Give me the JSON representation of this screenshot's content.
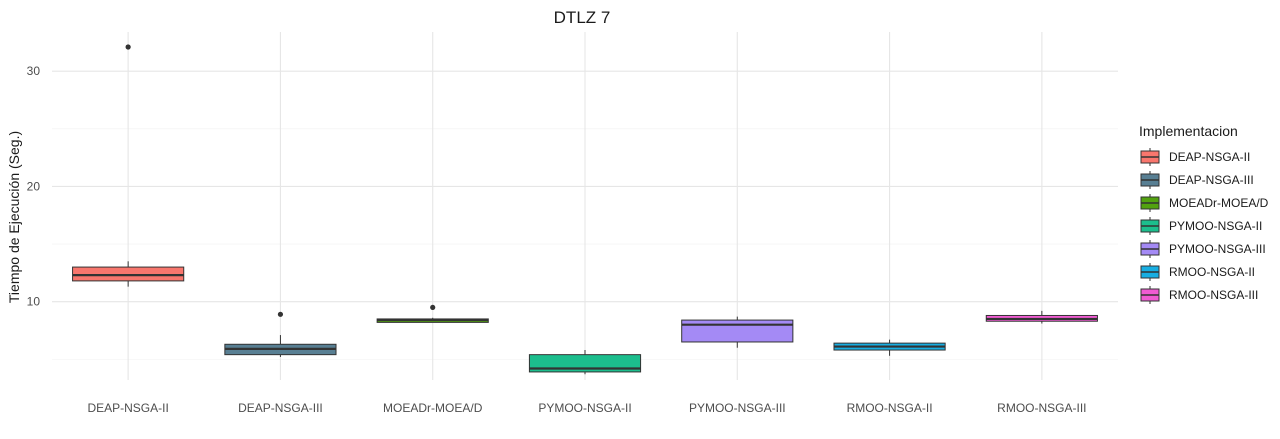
{
  "chart_data": {
    "type": "boxplot",
    "title": "DTLZ 7",
    "xlabel": "",
    "ylabel": "Tiempo de Ejecución (Seg.)",
    "ylim": [
      3.2,
      33.4
    ],
    "yticks": [
      10,
      20,
      30
    ],
    "grid": true,
    "legend_title": "Implementacion",
    "legend_position": "right",
    "categories": [
      "DEAP-NSGA-II",
      "DEAP-NSGA-III",
      "MOEADr-MOEA/D",
      "PYMOO-NSGA-II",
      "PYMOO-NSGA-III",
      "RMOO-NSGA-II",
      "RMOO-NSGA-III"
    ],
    "series": [
      {
        "name": "DEAP-NSGA-II",
        "color": "#F8766D",
        "min": 11.3,
        "q1": 11.8,
        "median": 12.3,
        "q3": 13.0,
        "max": 13.5,
        "outliers": [
          32.1
        ]
      },
      {
        "name": "DEAP-NSGA-III",
        "color": "#587F93",
        "min": 5.2,
        "q1": 5.4,
        "median": 5.9,
        "q3": 6.3,
        "max": 7.1,
        "outliers": [
          8.9
        ]
      },
      {
        "name": "MOEADr-MOEA/D",
        "color": "#52A20F",
        "min": 8.2,
        "q1": 8.2,
        "median": 8.4,
        "q3": 8.5,
        "max": 8.6,
        "outliers": [
          9.5
        ]
      },
      {
        "name": "PYMOO-NSGA-II",
        "color": "#1CBE8D",
        "min": 3.7,
        "q1": 3.9,
        "median": 4.2,
        "q3": 5.4,
        "max": 5.8,
        "outliers": []
      },
      {
        "name": "PYMOO-NSGA-III",
        "color": "#A48AF5",
        "min": 6.0,
        "q1": 6.5,
        "median": 8.0,
        "q3": 8.4,
        "max": 8.7,
        "outliers": []
      },
      {
        "name": "RMOO-NSGA-II",
        "color": "#18AEE2",
        "min": 5.3,
        "q1": 5.8,
        "median": 6.1,
        "q3": 6.4,
        "max": 6.7,
        "outliers": []
      },
      {
        "name": "RMOO-NSGA-III",
        "color": "#F05BD3",
        "min": 8.1,
        "q1": 8.3,
        "median": 8.5,
        "q3": 8.8,
        "max": 9.2,
        "outliers": []
      }
    ]
  }
}
